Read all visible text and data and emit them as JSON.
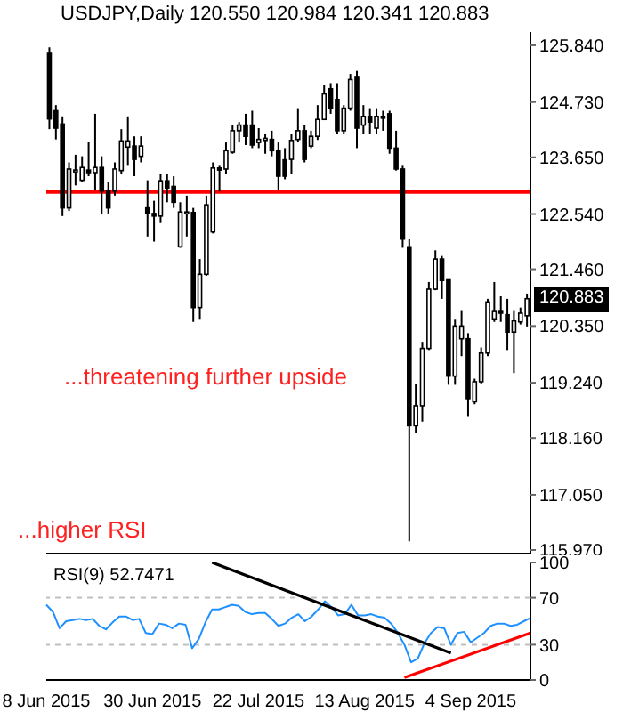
{
  "chart_data": [
    {
      "type": "candlestick",
      "title": "USDJPY,Daily 120.550 120.984 120.341 120.883",
      "color": "#000000",
      "categories": [
        null,
        null,
        null,
        null,
        null,
        null,
        null,
        null,
        null,
        null,
        null,
        null,
        null,
        null,
        null,
        null,
        null,
        null,
        null,
        null,
        null,
        null,
        null,
        null,
        null,
        null,
        null,
        null,
        null,
        null,
        null,
        null,
        null,
        null,
        null,
        null,
        null,
        null,
        null,
        null,
        null,
        null,
        null,
        null,
        null,
        null,
        null,
        null,
        null,
        null,
        null,
        null,
        null,
        null,
        null,
        null,
        null,
        null,
        null,
        null,
        null,
        null,
        null,
        null,
        null,
        null,
        null,
        null,
        null,
        null,
        null,
        null,
        null,
        null
      ],
      "ohlc": [
        [
          125.7,
          125.8,
          124.2,
          124.4
        ],
        [
          124.56,
          124.67,
          124.0,
          124.22
        ],
        [
          124.3,
          124.45,
          122.5,
          122.66
        ],
        [
          122.66,
          123.55,
          122.6,
          123.42
        ],
        [
          123.4,
          123.7,
          123.1,
          123.4
        ],
        [
          123.2,
          123.67,
          123.17,
          123.45
        ],
        [
          123.4,
          123.95,
          123.28,
          123.35
        ],
        [
          123.35,
          124.5,
          123.0,
          123.45
        ],
        [
          123.45,
          123.67,
          122.55,
          122.99
        ],
        [
          123.0,
          123.16,
          122.55,
          122.66
        ],
        [
          122.99,
          123.55,
          122.9,
          123.42
        ],
        [
          123.39,
          124.2,
          123.33,
          123.97
        ],
        [
          123.85,
          124.45,
          123.5,
          123.97
        ],
        [
          123.87,
          124.06,
          123.28,
          123.61
        ],
        [
          123.67,
          124.06,
          123.55,
          123.87
        ],
        [
          122.66,
          123.2,
          122.1,
          122.55
        ],
        [
          122.55,
          122.8,
          122.0,
          122.5
        ],
        [
          122.5,
          123.33,
          122.38,
          123.19
        ],
        [
          123.19,
          123.33,
          122.77,
          123.05
        ],
        [
          123.08,
          123.28,
          122.66,
          122.77
        ],
        [
          121.9,
          122.77,
          121.88,
          122.58
        ],
        [
          122.56,
          122.9,
          122.1,
          122.58
        ],
        [
          122.57,
          122.66,
          120.43,
          120.71
        ],
        [
          120.71,
          121.66,
          120.49,
          121.36
        ],
        [
          121.36,
          122.9,
          121.33,
          122.72
        ],
        [
          122.19,
          123.55,
          122.16,
          123.44
        ],
        [
          123.44,
          123.5,
          122.98,
          123.4
        ],
        [
          123.42,
          123.94,
          123.33,
          123.78
        ],
        [
          123.75,
          124.28,
          123.72,
          124.17
        ],
        [
          124.17,
          124.34,
          123.94,
          124.28
        ],
        [
          124.28,
          124.5,
          123.89,
          124.06
        ],
        [
          124.28,
          124.56,
          123.83,
          123.89
        ],
        [
          123.94,
          124.22,
          123.83,
          124.0
        ],
        [
          123.98,
          124.11,
          123.72,
          124.02
        ],
        [
          124.0,
          124.17,
          123.67,
          123.78
        ],
        [
          123.78,
          123.94,
          123.02,
          123.28
        ],
        [
          123.6,
          123.83,
          123.22,
          123.28
        ],
        [
          123.61,
          124.11,
          123.33,
          123.98
        ],
        [
          124.0,
          124.61,
          123.95,
          124.17
        ],
        [
          124.17,
          124.28,
          123.55,
          123.61
        ],
        [
          123.87,
          124.17,
          123.83,
          124.06
        ],
        [
          124.06,
          124.67,
          123.99,
          124.39
        ],
        [
          124.39,
          125.06,
          124.39,
          124.89
        ],
        [
          124.99,
          125.1,
          124.5,
          124.6
        ],
        [
          124.78,
          125.1,
          124.11,
          124.17
        ],
        [
          124.17,
          124.67,
          124.11,
          124.61
        ],
        [
          124.61,
          125.28,
          124.56,
          125.17
        ],
        [
          125.23,
          125.34,
          123.83,
          124.22
        ],
        [
          124.28,
          124.67,
          124.11,
          124.45
        ],
        [
          124.45,
          124.61,
          124.11,
          124.34
        ],
        [
          124.22,
          124.61,
          124.11,
          124.45
        ],
        [
          124.45,
          124.56,
          124.17,
          124.43
        ],
        [
          124.5,
          124.56,
          123.72,
          123.83
        ],
        [
          123.83,
          124.17,
          123.39,
          123.42
        ],
        [
          123.42,
          123.5,
          121.88,
          122.05
        ],
        [
          121.9,
          122.05,
          116.14,
          118.4
        ],
        [
          118.4,
          119.21,
          118.26,
          118.79
        ],
        [
          118.79,
          120.04,
          118.48,
          119.91
        ],
        [
          119.91,
          121.21,
          119.88,
          121.07
        ],
        [
          121.07,
          121.83,
          121.05,
          121.66
        ],
        [
          121.66,
          121.72,
          120.88,
          121.24
        ],
        [
          121.27,
          121.27,
          119.2,
          119.37
        ],
        [
          119.37,
          120.49,
          119.2,
          120.35
        ],
        [
          120.1,
          120.66,
          119.76,
          120.35
        ],
        [
          120.1,
          120.21,
          118.59,
          118.93
        ],
        [
          118.87,
          119.32,
          118.82,
          119.26
        ],
        [
          119.26,
          119.93,
          119.21,
          119.82
        ],
        [
          119.82,
          120.88,
          119.76,
          120.82
        ],
        [
          120.49,
          121.21,
          120.43,
          120.65
        ],
        [
          120.65,
          120.93,
          120.43,
          120.6
        ],
        [
          120.57,
          120.88,
          119.88,
          120.23
        ],
        [
          120.23,
          120.66,
          119.43,
          120.45
        ],
        [
          120.43,
          120.71,
          120.38,
          120.6
        ],
        [
          120.55,
          120.984,
          120.341,
          120.883
        ]
      ],
      "ylim": [
        115.9,
        126.1
      ],
      "yticks": [
        {
          "value": 125.84,
          "label": "125.840"
        },
        {
          "value": 124.73,
          "label": "124.730"
        },
        {
          "value": 123.65,
          "label": "123.650"
        },
        {
          "value": 122.54,
          "label": "122.540"
        },
        {
          "value": 121.46,
          "label": "121.460"
        },
        {
          "value": 120.35,
          "label": "120.350"
        },
        {
          "value": 119.24,
          "label": "119.240"
        },
        {
          "value": 118.16,
          "label": "118.160"
        },
        {
          "value": 117.05,
          "label": "117.050"
        },
        {
          "value": 115.97,
          "label": "115.970"
        }
      ],
      "ref_lines": [
        {
          "axis": "y",
          "value": 122.97,
          "color": "#ff0000"
        }
      ],
      "annotations": [
        "...threatening further upside",
        "...higher RSI",
        "120.883"
      ],
      "tick_labels": "y"
    },
    {
      "type": "line",
      "title": "RSI(9) 52.7471",
      "categories": [
        "8 Jun 2015",
        null,
        null,
        null,
        null,
        null,
        null,
        null,
        null,
        null,
        null,
        null,
        null,
        null,
        null,
        null,
        "30 Jun 2015",
        null,
        null,
        null,
        null,
        null,
        null,
        null,
        null,
        null,
        null,
        null,
        null,
        null,
        null,
        null,
        "22 Jul 2015",
        null,
        null,
        null,
        null,
        null,
        null,
        null,
        null,
        null,
        null,
        null,
        null,
        null,
        null,
        null,
        "13 Aug 2015",
        null,
        null,
        null,
        null,
        null,
        null,
        null,
        null,
        null,
        null,
        null,
        null,
        null,
        null,
        null,
        "4 Sep 2015",
        null,
        null,
        null,
        null,
        null,
        null,
        null,
        null,
        null
      ],
      "series": [
        {
          "color": "#1e90ff",
          "values": [
            64,
            58,
            44,
            50,
            51,
            52,
            51,
            52,
            46,
            43,
            49,
            54,
            54,
            51,
            52,
            40,
            39,
            48,
            47,
            44,
            48,
            47,
            27,
            35,
            49,
            60,
            60,
            62,
            64,
            63,
            58,
            56,
            57,
            57,
            52,
            46,
            48,
            53,
            56,
            50,
            54,
            60,
            67,
            62,
            55,
            56,
            64,
            55,
            55,
            56,
            54,
            53,
            48,
            40,
            30,
            15,
            18,
            31,
            40,
            45,
            44,
            30,
            40,
            41,
            32,
            36,
            40,
            46,
            48,
            48,
            46,
            47,
            50,
            52.7
          ]
        },
        {
          "color": "#000000",
          "values": [
            null,
            null,
            null,
            null,
            null,
            null,
            null,
            null,
            null,
            null,
            null,
            null,
            null,
            null,
            null,
            null,
            null,
            null,
            null,
            null,
            null,
            null,
            null,
            null,
            null,
            100,
            null,
            null,
            null,
            null,
            null,
            null,
            null,
            null,
            null,
            null,
            null,
            null,
            null,
            null,
            null,
            null,
            null,
            null,
            null,
            null,
            null,
            null,
            null,
            null,
            null,
            null,
            null,
            null,
            null,
            null,
            null,
            null,
            null,
            null,
            null,
            23,
            null,
            null,
            null,
            null,
            null,
            null,
            null,
            null,
            null,
            null,
            null,
            null
          ]
        },
        {
          "color": "#ff0000",
          "values": [
            null,
            null,
            null,
            null,
            null,
            null,
            null,
            null,
            null,
            null,
            null,
            null,
            null,
            null,
            null,
            null,
            null,
            null,
            null,
            null,
            null,
            null,
            null,
            null,
            null,
            null,
            null,
            null,
            null,
            null,
            null,
            null,
            null,
            null,
            null,
            null,
            null,
            null,
            null,
            null,
            null,
            null,
            null,
            null,
            null,
            null,
            null,
            null,
            null,
            null,
            null,
            null,
            null,
            null,
            2,
            null,
            null,
            null,
            null,
            null,
            null,
            null,
            null,
            null,
            null,
            null,
            null,
            null,
            null,
            null,
            null,
            null,
            null,
            40
          ]
        }
      ],
      "ylim": [
        0,
        100
      ],
      "yticks": [
        100,
        70,
        30,
        0
      ],
      "ref_lines": [
        {
          "axis": "y",
          "value": 70,
          "color": "#c0c0c0",
          "line_style": "dashed"
        },
        {
          "axis": "y",
          "value": 30,
          "color": "#c0c0c0",
          "line_style": "dashed"
        }
      ]
    }
  ]
}
